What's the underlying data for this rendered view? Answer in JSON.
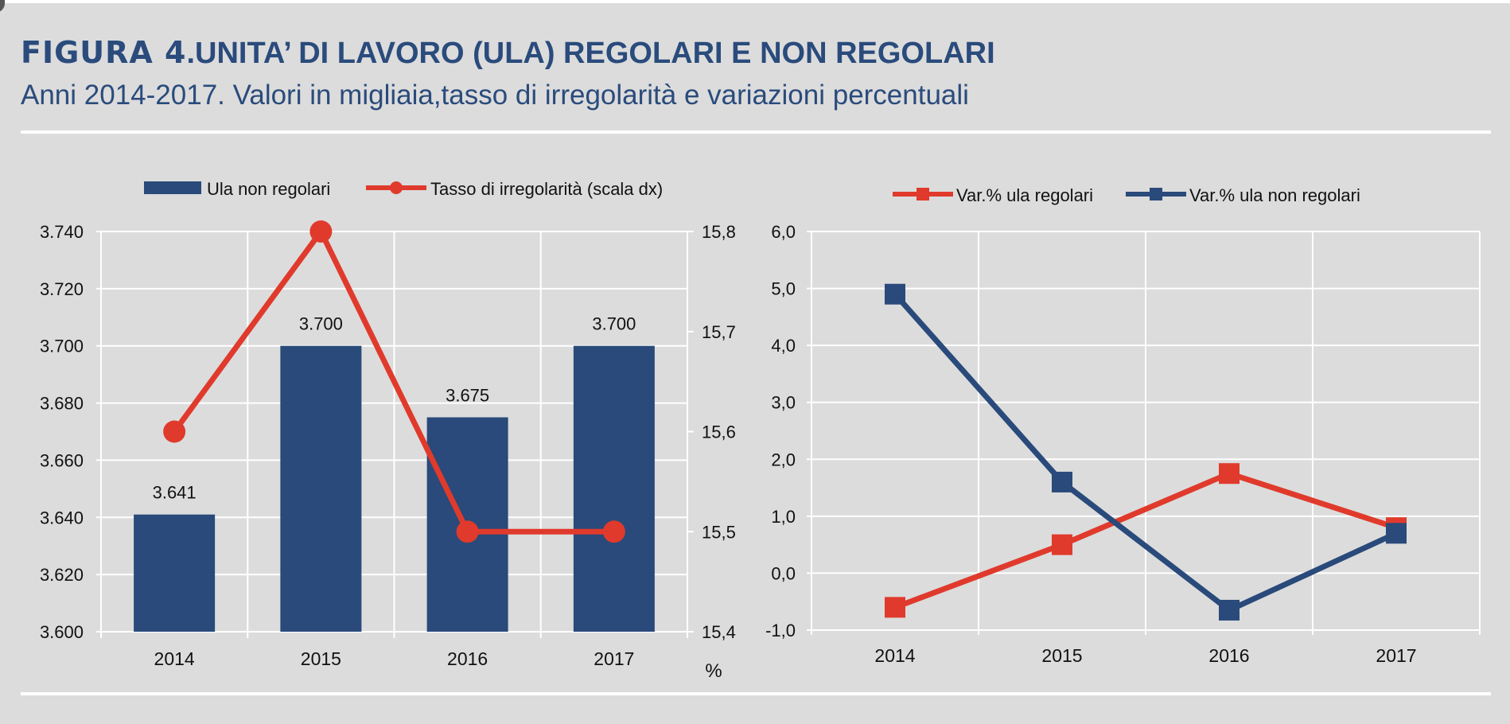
{
  "header": {
    "title_lead": "FIGURA 4",
    "title_rest": ".UNITA’ DI LAVORO (ULA) REGOLARI E NON REGOLARI",
    "subtitle": "Anni 2014-2017. Valori in migliaia,tasso di irregolarità e  variazioni percentuali"
  },
  "colors": {
    "blue": "#294a7a",
    "red": "#e03a2c",
    "grid": "#ffffff",
    "axis": "#ffffff",
    "background": "#dcdcdc",
    "title": "#2a4b7c"
  },
  "chart_data": [
    {
      "type": "bar+line",
      "categories": [
        "2014",
        "2015",
        "2016",
        "2017"
      ],
      "bars": {
        "name": "Ula non regolari",
        "values": [
          3641,
          3700,
          3675,
          3700
        ],
        "labels": [
          "3.641",
          "3.700",
          "3.675",
          "3.700"
        ]
      },
      "line": {
        "name": "Tasso di irregolarità (scala dx)",
        "values": [
          15.6,
          15.8,
          15.5,
          15.5
        ],
        "axis": "right"
      },
      "ylim": [
        3600,
        3740
      ],
      "yticks": [
        "3.600",
        "3.620",
        "3.640",
        "3.660",
        "3.680",
        "3.700",
        "3.720",
        "3.740"
      ],
      "y2lim": [
        15.4,
        15.8
      ],
      "y2ticks": [
        "15,4",
        "15,5",
        "15,6",
        "15,7",
        "15,8"
      ],
      "y2unit": "%",
      "grid": true,
      "legend": "top"
    },
    {
      "type": "line",
      "categories": [
        "2014",
        "2015",
        "2016",
        "2017"
      ],
      "series": [
        {
          "name": "Var.% ula regolari",
          "values": [
            -0.6,
            0.5,
            1.75,
            0.8
          ],
          "color": "red"
        },
        {
          "name": "Var.% ula non regolari",
          "values": [
            4.9,
            1.6,
            -0.65,
            0.7
          ],
          "color": "blue"
        }
      ],
      "ylim": [
        -1.0,
        6.0
      ],
      "yticks": [
        "-1,0",
        "0,0",
        "1,0",
        "2,0",
        "3,0",
        "4,0",
        "5,0",
        "6,0"
      ],
      "grid": true,
      "legend": "top"
    }
  ]
}
